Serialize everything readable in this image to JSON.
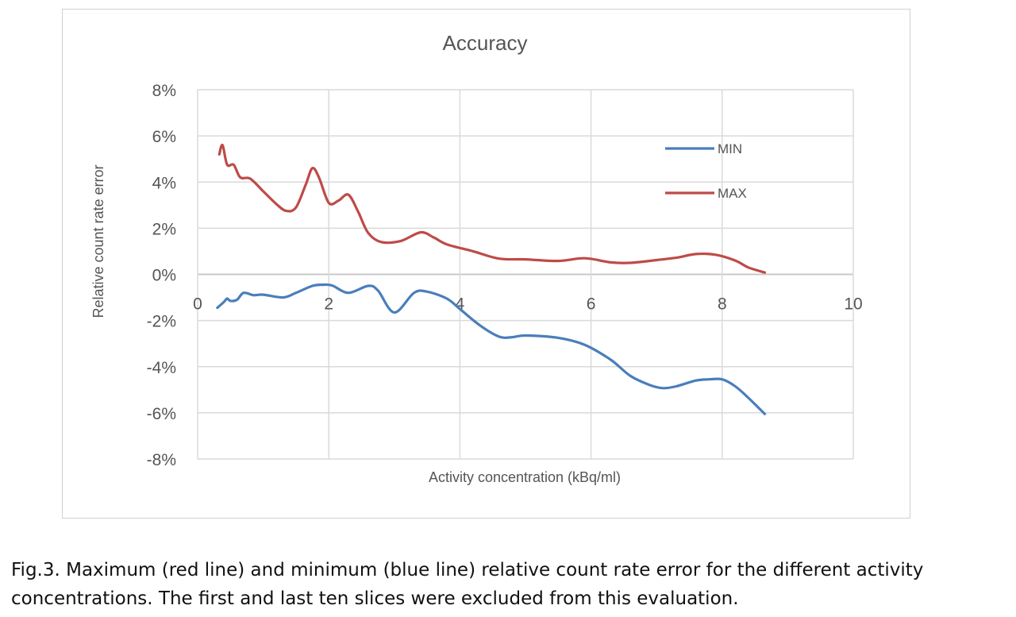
{
  "chart_data": {
    "type": "line",
    "title": "Accuracy",
    "xlabel": "Activity concentration (kBq/ml)",
    "ylabel": "Relative count rate error",
    "xlim": [
      0,
      10
    ],
    "ylim": [
      -8,
      8
    ],
    "x_ticks": [
      "0",
      "2",
      "4",
      "6",
      "8",
      "10"
    ],
    "y_ticks": [
      "8%",
      "6%",
      "4%",
      "2%",
      "0%",
      "-2%",
      "-4%",
      "-6%",
      "-8%"
    ],
    "grid": true,
    "legend_position": "top-right",
    "series": [
      {
        "name": "MIN",
        "color": "#4a7ebb",
        "points": [
          [
            0.3,
            -1.45
          ],
          [
            0.4,
            -1.2
          ],
          [
            0.45,
            -1.05
          ],
          [
            0.5,
            -1.15
          ],
          [
            0.6,
            -1.1
          ],
          [
            0.7,
            -0.8
          ],
          [
            0.85,
            -0.9
          ],
          [
            1.0,
            -0.88
          ],
          [
            1.3,
            -1.0
          ],
          [
            1.5,
            -0.8
          ],
          [
            1.75,
            -0.5
          ],
          [
            1.9,
            -0.45
          ],
          [
            2.05,
            -0.48
          ],
          [
            2.3,
            -0.8
          ],
          [
            2.6,
            -0.5
          ],
          [
            2.75,
            -0.7
          ],
          [
            3.0,
            -1.65
          ],
          [
            3.3,
            -0.8
          ],
          [
            3.5,
            -0.75
          ],
          [
            3.8,
            -1.05
          ],
          [
            4.0,
            -1.5
          ],
          [
            4.3,
            -2.2
          ],
          [
            4.6,
            -2.7
          ],
          [
            4.8,
            -2.72
          ],
          [
            5.0,
            -2.65
          ],
          [
            5.5,
            -2.75
          ],
          [
            5.9,
            -3.05
          ],
          [
            6.3,
            -3.7
          ],
          [
            6.6,
            -4.4
          ],
          [
            6.9,
            -4.8
          ],
          [
            7.1,
            -4.93
          ],
          [
            7.3,
            -4.85
          ],
          [
            7.6,
            -4.6
          ],
          [
            7.8,
            -4.55
          ],
          [
            8.0,
            -4.55
          ],
          [
            8.2,
            -4.85
          ],
          [
            8.4,
            -5.35
          ],
          [
            8.65,
            -6.05
          ]
        ]
      },
      {
        "name": "MAX",
        "color": "#be4b48",
        "points": [
          [
            0.33,
            5.2
          ],
          [
            0.38,
            5.6
          ],
          [
            0.45,
            4.75
          ],
          [
            0.55,
            4.75
          ],
          [
            0.65,
            4.2
          ],
          [
            0.8,
            4.15
          ],
          [
            1.0,
            3.6
          ],
          [
            1.2,
            3.05
          ],
          [
            1.35,
            2.75
          ],
          [
            1.5,
            2.9
          ],
          [
            1.65,
            3.9
          ],
          [
            1.75,
            4.6
          ],
          [
            1.85,
            4.2
          ],
          [
            2.0,
            3.1
          ],
          [
            2.15,
            3.2
          ],
          [
            2.3,
            3.45
          ],
          [
            2.45,
            2.7
          ],
          [
            2.6,
            1.8
          ],
          [
            2.8,
            1.4
          ],
          [
            3.1,
            1.45
          ],
          [
            3.4,
            1.82
          ],
          [
            3.6,
            1.6
          ],
          [
            3.8,
            1.3
          ],
          [
            4.2,
            1.0
          ],
          [
            4.6,
            0.68
          ],
          [
            5.0,
            0.65
          ],
          [
            5.5,
            0.58
          ],
          [
            5.9,
            0.7
          ],
          [
            6.3,
            0.52
          ],
          [
            6.6,
            0.5
          ],
          [
            7.0,
            0.62
          ],
          [
            7.3,
            0.72
          ],
          [
            7.6,
            0.88
          ],
          [
            7.9,
            0.85
          ],
          [
            8.2,
            0.6
          ],
          [
            8.4,
            0.3
          ],
          [
            8.65,
            0.08
          ]
        ]
      }
    ]
  },
  "caption": {
    "line1": "Fig.3. Maximum (red line) and minimum (blue line) relative count rate error for the different activity",
    "line2": "concentrations. The first and last ten slices were excluded from this evaluation."
  }
}
